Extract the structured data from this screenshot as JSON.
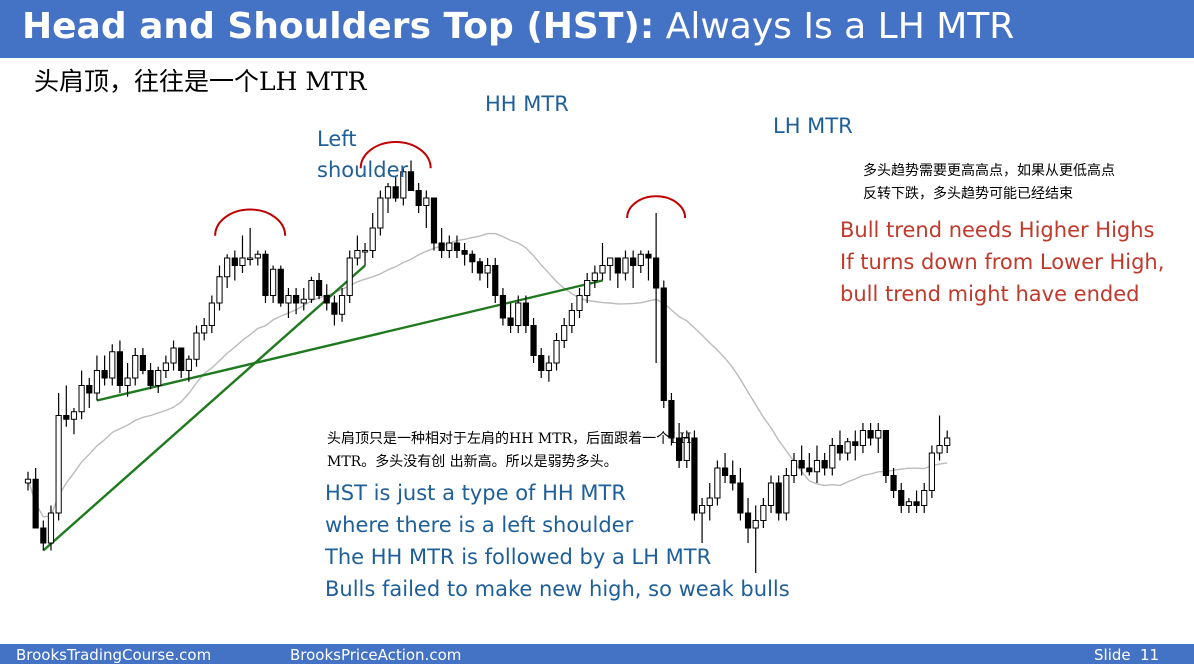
{
  "slide": {
    "title_bold": "Head and Shoulders Top (HST):",
    "title_rest": " Always Is a LH MTR",
    "subtitle_cn": "头肩顶，往往是一个LH MTR",
    "labels": {
      "left_shoulder": [
        "Left",
        "shoulder"
      ],
      "hh_mtr": "HH MTR",
      "lh_mtr": "LH MTR"
    },
    "note_right_cn": [
      "多头趋势需要更高高点，如果从更低高点",
      "反转下跌，多头趋势可能已经结束"
    ],
    "note_right_en": [
      "Bull trend needs Higher Highs",
      "If turns down from Lower High,",
      "bull trend might have ended"
    ],
    "note_bottom_cn": [
      "头肩顶只是一种相对于左肩的HH MTR，后面跟着一个LH",
      "MTR。多头没有创 出新高。所以是弱势多头。"
    ],
    "note_bottom_en": [
      "HST is just a type of HH MTR",
      "where there is a left shoulder",
      "The HH MTR is followed by a LH MTR",
      "Bulls failed to make new high, so weak bulls"
    ],
    "footer": {
      "site1": "BrooksTradingCourse.com",
      "site2": "BrooksPriceAction.com",
      "slide_label": "Slide",
      "slide_number": "11"
    }
  },
  "chart_data": {
    "type": "candlestick",
    "title": "",
    "xlabel": "",
    "ylabel": "",
    "ylim": [
      0,
      100
    ],
    "grid": false,
    "legend": "none",
    "colors": {
      "bull_body": "#ffffff",
      "bear_body": "#000000",
      "wick": "#000000",
      "ma": "#bbbbbb",
      "trendline": "#1f7a1f",
      "arc": "#c00000"
    },
    "candles": [
      {
        "o": 20,
        "h": 23,
        "l": 18,
        "c": 21
      },
      {
        "o": 21,
        "h": 24,
        "l": 8,
        "c": 8
      },
      {
        "o": 8,
        "h": 10,
        "l": 2,
        "c": 4
      },
      {
        "o": 4,
        "h": 14,
        "l": 2,
        "c": 12
      },
      {
        "o": 12,
        "h": 44,
        "l": 10,
        "c": 38
      },
      {
        "o": 38,
        "h": 46,
        "l": 35,
        "c": 37
      },
      {
        "o": 37,
        "h": 40,
        "l": 33,
        "c": 39
      },
      {
        "o": 39,
        "h": 50,
        "l": 37,
        "c": 46
      },
      {
        "o": 46,
        "h": 48,
        "l": 40,
        "c": 44
      },
      {
        "o": 44,
        "h": 54,
        "l": 42,
        "c": 50
      },
      {
        "o": 50,
        "h": 54,
        "l": 46,
        "c": 48
      },
      {
        "o": 48,
        "h": 57,
        "l": 46,
        "c": 55
      },
      {
        "o": 55,
        "h": 58,
        "l": 44,
        "c": 46
      },
      {
        "o": 46,
        "h": 52,
        "l": 43,
        "c": 48
      },
      {
        "o": 48,
        "h": 56,
        "l": 46,
        "c": 54
      },
      {
        "o": 54,
        "h": 56,
        "l": 49,
        "c": 50
      },
      {
        "o": 50,
        "h": 52,
        "l": 45,
        "c": 46
      },
      {
        "o": 46,
        "h": 51,
        "l": 44,
        "c": 50
      },
      {
        "o": 50,
        "h": 54,
        "l": 48,
        "c": 52
      },
      {
        "o": 52,
        "h": 58,
        "l": 50,
        "c": 56
      },
      {
        "o": 56,
        "h": 56,
        "l": 48,
        "c": 50
      },
      {
        "o": 50,
        "h": 54,
        "l": 47,
        "c": 53
      },
      {
        "o": 53,
        "h": 62,
        "l": 51,
        "c": 60
      },
      {
        "o": 60,
        "h": 64,
        "l": 58,
        "c": 62
      },
      {
        "o": 62,
        "h": 70,
        "l": 60,
        "c": 68
      },
      {
        "o": 68,
        "h": 78,
        "l": 66,
        "c": 75
      },
      {
        "o": 75,
        "h": 81,
        "l": 72,
        "c": 80
      },
      {
        "o": 80,
        "h": 82,
        "l": 74,
        "c": 78
      },
      {
        "o": 78,
        "h": 86,
        "l": 76,
        "c": 80
      },
      {
        "o": 80,
        "h": 88,
        "l": 78,
        "c": 80
      },
      {
        "o": 80,
        "h": 82,
        "l": 78,
        "c": 81
      },
      {
        "o": 81,
        "h": 82,
        "l": 68,
        "c": 70
      },
      {
        "o": 70,
        "h": 78,
        "l": 68,
        "c": 77
      },
      {
        "o": 77,
        "h": 78,
        "l": 67,
        "c": 68
      },
      {
        "o": 68,
        "h": 72,
        "l": 64,
        "c": 70
      },
      {
        "o": 70,
        "h": 72,
        "l": 65,
        "c": 68
      },
      {
        "o": 68,
        "h": 72,
        "l": 66,
        "c": 69
      },
      {
        "o": 69,
        "h": 75,
        "l": 68,
        "c": 74
      },
      {
        "o": 74,
        "h": 76,
        "l": 69,
        "c": 70
      },
      {
        "o": 70,
        "h": 73,
        "l": 66,
        "c": 68
      },
      {
        "o": 68,
        "h": 70,
        "l": 62,
        "c": 65
      },
      {
        "o": 65,
        "h": 72,
        "l": 63,
        "c": 70
      },
      {
        "o": 70,
        "h": 82,
        "l": 68,
        "c": 80
      },
      {
        "o": 80,
        "h": 86,
        "l": 78,
        "c": 82
      },
      {
        "o": 82,
        "h": 84,
        "l": 78,
        "c": 82
      },
      {
        "o": 82,
        "h": 92,
        "l": 80,
        "c": 88
      },
      {
        "o": 88,
        "h": 98,
        "l": 86,
        "c": 96
      },
      {
        "o": 96,
        "h": 100,
        "l": 92,
        "c": 99
      },
      {
        "o": 99,
        "h": 102,
        "l": 95,
        "c": 96
      },
      {
        "o": 96,
        "h": 104,
        "l": 94,
        "c": 103
      },
      {
        "o": 103,
        "h": 106,
        "l": 98,
        "c": 98
      },
      {
        "o": 98,
        "h": 100,
        "l": 92,
        "c": 94
      },
      {
        "o": 94,
        "h": 98,
        "l": 88,
        "c": 96
      },
      {
        "o": 96,
        "h": 96,
        "l": 82,
        "c": 84
      },
      {
        "o": 84,
        "h": 88,
        "l": 80,
        "c": 82
      },
      {
        "o": 82,
        "h": 86,
        "l": 80,
        "c": 84
      },
      {
        "o": 84,
        "h": 86,
        "l": 80,
        "c": 82
      },
      {
        "o": 82,
        "h": 84,
        "l": 78,
        "c": 81
      },
      {
        "o": 81,
        "h": 82,
        "l": 76,
        "c": 79
      },
      {
        "o": 79,
        "h": 80,
        "l": 74,
        "c": 76
      },
      {
        "o": 76,
        "h": 80,
        "l": 72,
        "c": 78
      },
      {
        "o": 78,
        "h": 80,
        "l": 68,
        "c": 70
      },
      {
        "o": 70,
        "h": 72,
        "l": 62,
        "c": 64
      },
      {
        "o": 64,
        "h": 68,
        "l": 60,
        "c": 62
      },
      {
        "o": 62,
        "h": 70,
        "l": 60,
        "c": 68
      },
      {
        "o": 68,
        "h": 70,
        "l": 60,
        "c": 62
      },
      {
        "o": 62,
        "h": 64,
        "l": 52,
        "c": 54
      },
      {
        "o": 54,
        "h": 56,
        "l": 48,
        "c": 50
      },
      {
        "o": 50,
        "h": 54,
        "l": 47,
        "c": 52
      },
      {
        "o": 52,
        "h": 60,
        "l": 50,
        "c": 58
      },
      {
        "o": 58,
        "h": 64,
        "l": 56,
        "c": 62
      },
      {
        "o": 62,
        "h": 68,
        "l": 60,
        "c": 66
      },
      {
        "o": 66,
        "h": 72,
        "l": 64,
        "c": 70
      },
      {
        "o": 70,
        "h": 76,
        "l": 68,
        "c": 74
      },
      {
        "o": 74,
        "h": 78,
        "l": 72,
        "c": 76
      },
      {
        "o": 76,
        "h": 84,
        "l": 74,
        "c": 78
      },
      {
        "o": 78,
        "h": 80,
        "l": 74,
        "c": 80
      },
      {
        "o": 80,
        "h": 80,
        "l": 72,
        "c": 76
      },
      {
        "o": 76,
        "h": 82,
        "l": 74,
        "c": 80
      },
      {
        "o": 80,
        "h": 82,
        "l": 72,
        "c": 78
      },
      {
        "o": 78,
        "h": 82,
        "l": 76,
        "c": 81
      },
      {
        "o": 81,
        "h": 82,
        "l": 74,
        "c": 80
      },
      {
        "o": 80,
        "h": 92,
        "l": 52,
        "c": 72
      },
      {
        "o": 72,
        "h": 74,
        "l": 40,
        "c": 42
      },
      {
        "o": 42,
        "h": 44,
        "l": 30,
        "c": 32
      },
      {
        "o": 32,
        "h": 36,
        "l": 24,
        "c": 26
      },
      {
        "o": 26,
        "h": 34,
        "l": 24,
        "c": 32
      },
      {
        "o": 32,
        "h": 34,
        "l": 10,
        "c": 12
      },
      {
        "o": 12,
        "h": 16,
        "l": 4,
        "c": 14
      },
      {
        "o": 14,
        "h": 20,
        "l": 10,
        "c": 16
      },
      {
        "o": 16,
        "h": 26,
        "l": 14,
        "c": 24
      },
      {
        "o": 24,
        "h": 28,
        "l": 20,
        "c": 22
      },
      {
        "o": 22,
        "h": 26,
        "l": 18,
        "c": 20
      },
      {
        "o": 20,
        "h": 24,
        "l": 10,
        "c": 12
      },
      {
        "o": 12,
        "h": 16,
        "l": 4,
        "c": 8
      },
      {
        "o": 8,
        "h": 14,
        "l": -4,
        "c": 10
      },
      {
        "o": 10,
        "h": 16,
        "l": 8,
        "c": 14
      },
      {
        "o": 14,
        "h": 22,
        "l": 12,
        "c": 20
      },
      {
        "o": 20,
        "h": 22,
        "l": 10,
        "c": 12
      },
      {
        "o": 12,
        "h": 24,
        "l": 10,
        "c": 22
      },
      {
        "o": 22,
        "h": 28,
        "l": 20,
        "c": 26
      },
      {
        "o": 26,
        "h": 30,
        "l": 22,
        "c": 24
      },
      {
        "o": 24,
        "h": 28,
        "l": 22,
        "c": 23
      },
      {
        "o": 23,
        "h": 30,
        "l": 20,
        "c": 26
      },
      {
        "o": 26,
        "h": 28,
        "l": 22,
        "c": 24
      },
      {
        "o": 24,
        "h": 32,
        "l": 22,
        "c": 30
      },
      {
        "o": 30,
        "h": 34,
        "l": 26,
        "c": 28
      },
      {
        "o": 28,
        "h": 32,
        "l": 26,
        "c": 31
      },
      {
        "o": 31,
        "h": 34,
        "l": 26,
        "c": 30
      },
      {
        "o": 30,
        "h": 36,
        "l": 28,
        "c": 34
      },
      {
        "o": 34,
        "h": 36,
        "l": 30,
        "c": 32
      },
      {
        "o": 32,
        "h": 36,
        "l": 28,
        "c": 34
      },
      {
        "o": 34,
        "h": 34,
        "l": 20,
        "c": 22
      },
      {
        "o": 22,
        "h": 24,
        "l": 16,
        "c": 18
      },
      {
        "o": 18,
        "h": 20,
        "l": 12,
        "c": 14
      },
      {
        "o": 14,
        "h": 16,
        "l": 12,
        "c": 15
      },
      {
        "o": 15,
        "h": 18,
        "l": 12,
        "c": 14
      },
      {
        "o": 14,
        "h": 20,
        "l": 12,
        "c": 18
      },
      {
        "o": 18,
        "h": 30,
        "l": 16,
        "c": 28
      },
      {
        "o": 28,
        "h": 38,
        "l": 26,
        "c": 30
      },
      {
        "o": 30,
        "h": 34,
        "l": 28,
        "c": 32
      }
    ]
  }
}
